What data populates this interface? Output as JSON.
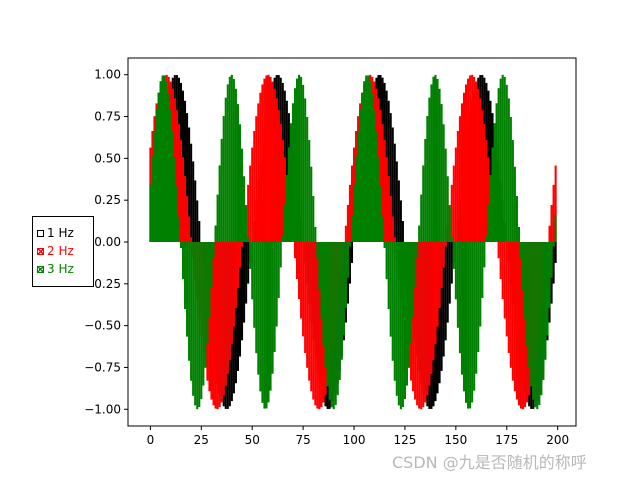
{
  "chart_data": {
    "type": "bar",
    "title": "",
    "xlabel": "",
    "ylabel": "",
    "xlim": [
      -11,
      209
    ],
    "ylim": [
      -1.1,
      1.1
    ],
    "x": {
      "start": 0,
      "end": 199,
      "step": 1
    },
    "x_ticks": [
      0,
      25,
      50,
      75,
      100,
      125,
      150,
      175,
      200
    ],
    "x_tick_labels": [
      "0",
      "25",
      "50",
      "75",
      "100",
      "125",
      "150",
      "175",
      "200"
    ],
    "y_ticks": [
      1.0,
      0.75,
      0.5,
      0.25,
      0.0,
      -0.25,
      -0.5,
      -0.75,
      -1.0
    ],
    "y_tick_labels": [
      "1.00",
      "0.75",
      "0.50",
      "0.25",
      "0.00",
      "−0.25",
      "−0.50",
      "−0.75",
      "−1.00"
    ],
    "grid": false,
    "legend_position": "center-left",
    "series": [
      {
        "name": "1 Hz",
        "color": "#000000",
        "values_formula": "sin(2*pi*x/50)"
      },
      {
        "name": "2 Hz",
        "color": "#ff0000",
        "values_formula": "sin(2*pi*x/50 + 0.6)"
      },
      {
        "name": "3 Hz",
        "color": "#008000",
        "values_formula": "sin(2*pi*x/25) / sin(2*pi*x/20)"
      }
    ]
  },
  "legend": {
    "items": [
      {
        "label": "1 Hz",
        "color": "#000000",
        "marker": "square"
      },
      {
        "label": "2 Hz",
        "color": "#ff0000",
        "marker": "crossed-square"
      },
      {
        "label": "3 Hz",
        "color": "#008000",
        "marker": "crossed-square"
      }
    ]
  },
  "watermark": "CSDN @九是否随机的称呼"
}
